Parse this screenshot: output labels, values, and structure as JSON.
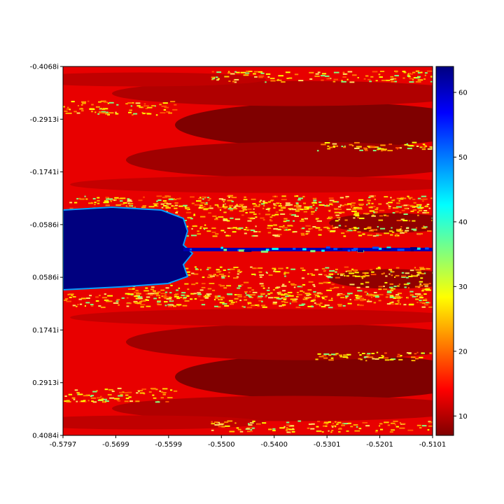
{
  "chart_data": {
    "type": "heatmap",
    "title": "",
    "xlabel": "",
    "ylabel": "",
    "xlim": [
      -0.5797,
      -0.5101
    ],
    "ylim_imag": [
      -0.4068,
      0.4084
    ],
    "x_tick_labels": [
      "-0.5797",
      "-0.5699",
      "-0.5599",
      "-0.5500",
      "-0.5400",
      "-0.5301",
      "-0.5201",
      "-0.5101"
    ],
    "y_tick_labels": [
      "-0.4068i",
      "-0.2913i",
      "-0.1741i",
      "-0.0586i",
      "0.0586i",
      "0.1741i",
      "0.2913i",
      "0.4084i"
    ],
    "colormap": "jet",
    "colorbar": {
      "range": [
        7,
        64
      ],
      "ticks": [
        10,
        20,
        30,
        40,
        50,
        60
      ],
      "tick_labels": [
        "10",
        "20",
        "30",
        "40",
        "50",
        "60"
      ]
    },
    "description_values": {
      "max_iterations_region_value": 64,
      "background_min_value": 7
    },
    "grid": false
  }
}
